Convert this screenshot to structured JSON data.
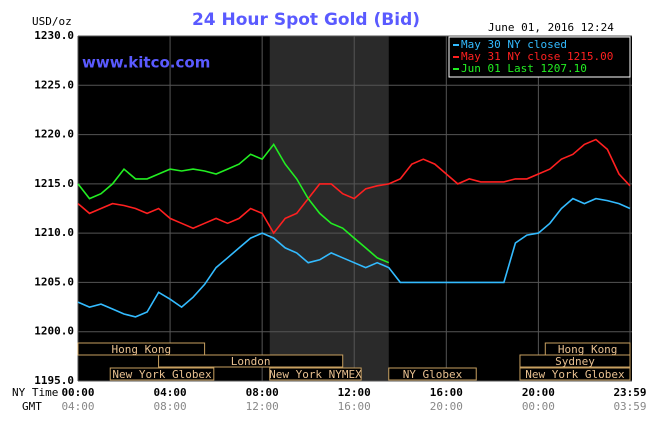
{
  "chart_data": {
    "type": "line",
    "title": "24 Hour Spot Gold (Bid)",
    "y_unit": "USD/oz",
    "timestamp": "June 01, 2016 12:24",
    "watermark": "www.kitco.com",
    "x_axis_label": "NY Time",
    "x2_axis_label": "GMT",
    "x": [
      0,
      0.5,
      1,
      1.5,
      2,
      2.5,
      3,
      3.5,
      4,
      4.5,
      5,
      5.5,
      6,
      6.5,
      7,
      7.5,
      8,
      8.5,
      9,
      9.5,
      10,
      10.5,
      11,
      11.5,
      12,
      12.5,
      13,
      13.5,
      14,
      14.5,
      15,
      15.5,
      16,
      16.5,
      17,
      17.5,
      18,
      18.5,
      19,
      19.5,
      20,
      20.5,
      21,
      21.5,
      22,
      22.5,
      23,
      23.5,
      23.98
    ],
    "xlim": [
      0,
      23.98
    ],
    "xticks": [
      {
        "value": 0,
        "label": "00:00"
      },
      {
        "value": 4,
        "label": "04:00"
      },
      {
        "value": 8,
        "label": "08:00"
      },
      {
        "value": 12,
        "label": "12:00"
      },
      {
        "value": 16,
        "label": "16:00"
      },
      {
        "value": 20,
        "label": "20:00"
      },
      {
        "value": 23.98,
        "label": "23:59"
      }
    ],
    "gmt_labels": [
      "04:00",
      "08:00",
      "12:00",
      "16:00",
      "20:00",
      "00:00",
      "03:59"
    ],
    "ylim": [
      1195,
      1230
    ],
    "yticks": [
      {
        "value": 1195,
        "label": "1195.0"
      },
      {
        "value": 1200,
        "label": "1200.0"
      },
      {
        "value": 1205,
        "label": "1205.0"
      },
      {
        "value": 1210,
        "label": "1210.0"
      },
      {
        "value": 1215,
        "label": "1215.0"
      },
      {
        "value": 1220,
        "label": "1220.0"
      },
      {
        "value": 1225,
        "label": "1225.0"
      },
      {
        "value": 1230,
        "label": "1230.0"
      }
    ],
    "grid": true,
    "legend": "top-right",
    "shaded_x": [
      8.33,
      13.5
    ],
    "series": [
      {
        "name": "May 30 NY closed",
        "color": "#33bbff",
        "values": [
          1203,
          1202.5,
          1202.8,
          1202.3,
          1201.8,
          1201.5,
          1202,
          1204,
          1203.3,
          1202.5,
          1203.5,
          1204.8,
          1206.5,
          1207.5,
          1208.5,
          1209.5,
          1210,
          1209.5,
          1208.5,
          1208,
          1207,
          1207.3,
          1208,
          1207.5,
          1207,
          1206.5,
          1207,
          1206.5,
          1205,
          1205,
          1205,
          1205,
          1205,
          1205,
          1205,
          1205,
          1205,
          1205,
          1209,
          1209.8,
          1210,
          1211,
          1212.5,
          1213.5,
          1213,
          1213.5,
          1213.3,
          1213,
          1212.5
        ]
      },
      {
        "name": "May 31 NY close 1215.00",
        "color": "#ff2020",
        "values": [
          1213,
          1212,
          1212.5,
          1213,
          1212.8,
          1212.5,
          1212,
          1212.5,
          1211.5,
          1211,
          1210.5,
          1211,
          1211.5,
          1211,
          1211.5,
          1212.5,
          1212,
          1210,
          1211.5,
          1212,
          1213.5,
          1215,
          1215,
          1214,
          1213.5,
          1214.5,
          1214.8,
          1215,
          1215.5,
          1217,
          1217.5,
          1217,
          1216,
          1215,
          1215.5,
          1215.2,
          1215.2,
          1215.2,
          1215.5,
          1215.5,
          1216,
          1216.5,
          1217.5,
          1218,
          1219,
          1219.5,
          1218.5,
          1216,
          1214.8
        ]
      },
      {
        "name": "Jun 01 Last 1207.10",
        "color": "#22ee22",
        "values": [
          1215,
          1213.5,
          1214,
          1215,
          1216.5,
          1215.5,
          1215.5,
          1216,
          1216.5,
          1216.3,
          1216.5,
          1216.3,
          1216,
          1216.5,
          1217,
          1218,
          1217.5,
          1219,
          1217,
          1215.5,
          1213.5,
          1212,
          1211,
          1210.5,
          1209.5,
          1208.5,
          1207.5,
          1207,
          null,
          null,
          null,
          null,
          null,
          null,
          null,
          null,
          null,
          null,
          null,
          null,
          null,
          null,
          null,
          null,
          null,
          null,
          null,
          null,
          null
        ]
      }
    ],
    "sessions": [
      {
        "name": "Hong Kong",
        "row": 0,
        "x": [
          0,
          5.5
        ]
      },
      {
        "name": "London",
        "row": 1,
        "x": [
          3.5,
          11.5
        ]
      },
      {
        "name": "New York Globex",
        "row": 2,
        "x": [
          1.4,
          5.9
        ]
      },
      {
        "name": "New York NYMEX",
        "row": 2,
        "x": [
          8.33,
          12.3
        ]
      },
      {
        "name": "NY Globex",
        "row": 2,
        "x": [
          13.5,
          17.3
        ]
      },
      {
        "name": "Hong Kong",
        "row": 0,
        "x": [
          20.3,
          23.98
        ]
      },
      {
        "name": "Sydney",
        "row": 1,
        "x": [
          19.2,
          23.98
        ]
      },
      {
        "name": "New York Globex",
        "row": 2,
        "x": [
          19.2,
          23.98
        ]
      }
    ]
  }
}
